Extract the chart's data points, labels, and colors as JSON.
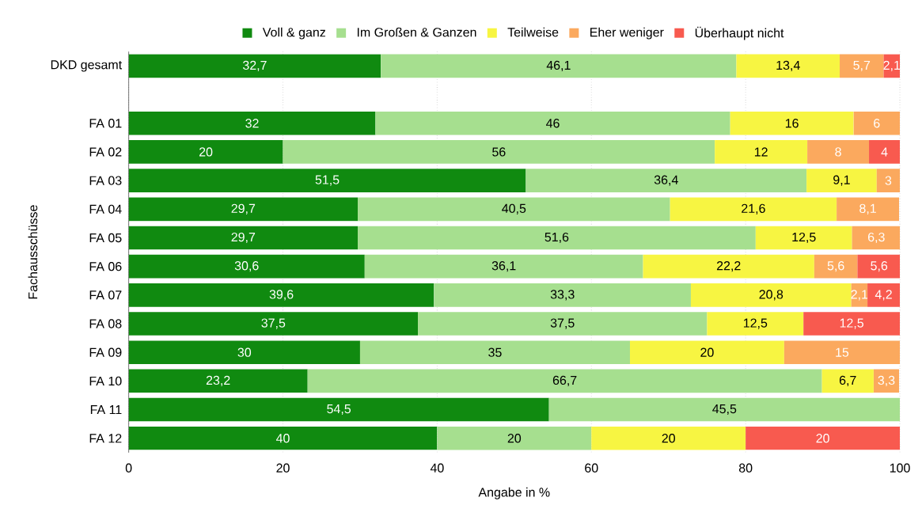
{
  "chart_data": {
    "type": "bar",
    "orientation": "horizontal",
    "stacked": true,
    "xlabel": "Angabe in %",
    "ylabel": "Fachausschüsse",
    "categories": [
      "DKD gesamt",
      null,
      "FA 01",
      "FA 02",
      "FA 03",
      "FA 04",
      "FA 05",
      "FA 06",
      "FA 07",
      "FA 08",
      "FA 09",
      "FA 10",
      "FA 11",
      "FA 12"
    ],
    "series": [
      {
        "name": "Voll & ganz",
        "color": "#108a10",
        "values": [
          32.7,
          null,
          32,
          20,
          51.5,
          29.7,
          29.7,
          30.6,
          39.6,
          37.5,
          30,
          23.2,
          54.5,
          40
        ],
        "value_labels": [
          "32,7",
          null,
          "32",
          "20",
          "51,5",
          "29,7",
          "29,7",
          "30,6",
          "39,6",
          "37,5",
          "30",
          "23,2",
          "54,5",
          "40"
        ]
      },
      {
        "name": "Im Großen & Ganzen",
        "color": "#a6df8f",
        "values": [
          46.1,
          null,
          46,
          56,
          36.4,
          40.5,
          51.6,
          36.1,
          33.3,
          37.5,
          35,
          66.7,
          45.5,
          20
        ],
        "value_labels": [
          "46,1",
          null,
          "46",
          "56",
          "36,4",
          "40,5",
          "51,6",
          "36,1",
          "33,3",
          "37,5",
          "35",
          "66,7",
          "45,5",
          "20"
        ]
      },
      {
        "name": "Teilweise",
        "color": "#f7f542",
        "values": [
          13.4,
          null,
          16,
          12,
          9.1,
          21.6,
          12.5,
          22.2,
          20.8,
          12.5,
          20,
          6.7,
          null,
          20
        ],
        "value_labels": [
          "13,4",
          null,
          "16",
          "12",
          "9,1",
          "21,6",
          "12,5",
          "22,2",
          "20,8",
          "12,5",
          "20",
          "6,7",
          null,
          "20"
        ]
      },
      {
        "name": "Eher weniger",
        "color": "#fba95e",
        "values": [
          5.7,
          null,
          6,
          8,
          3,
          8.1,
          6.3,
          5.6,
          2.1,
          null,
          15,
          3.3,
          null,
          null
        ],
        "value_labels": [
          "5,7",
          null,
          "6",
          "8",
          "3",
          "8,1",
          "6,3",
          "5,6",
          "2,1",
          null,
          "15",
          "3,3",
          null,
          null
        ]
      },
      {
        "name": "Überhaupt nicht",
        "color": "#f85a4f",
        "values": [
          2.1,
          null,
          null,
          4,
          null,
          null,
          null,
          5.6,
          4.2,
          12.5,
          null,
          null,
          null,
          20
        ],
        "value_labels": [
          "2,1",
          null,
          null,
          "4",
          null,
          null,
          null,
          "5,6",
          "4,2",
          "12,5",
          null,
          null,
          null,
          "20"
        ]
      }
    ],
    "xlim": [
      0,
      100
    ],
    "xticks": [
      0,
      20,
      40,
      60,
      80,
      100
    ],
    "grid": "x",
    "legend": "top"
  }
}
